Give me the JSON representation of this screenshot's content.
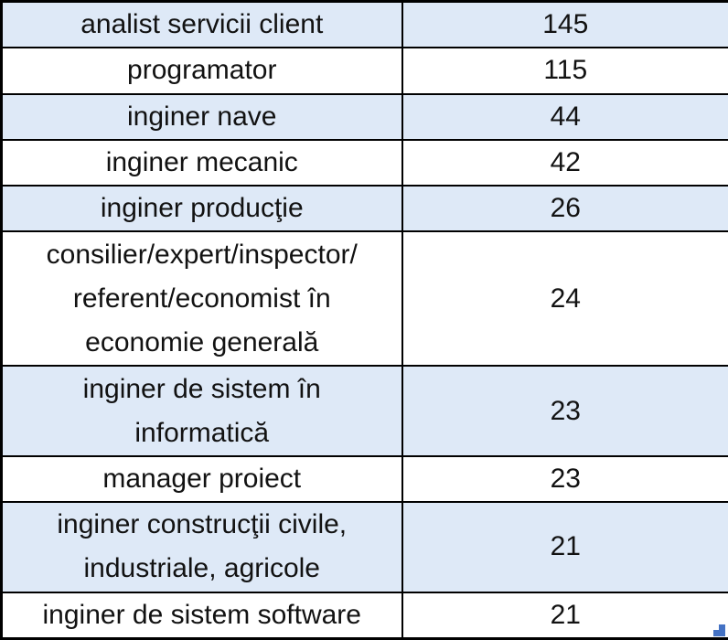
{
  "table": {
    "rows": [
      {
        "label": "analist servicii client",
        "value": "145"
      },
      {
        "label": "programator",
        "value": "115"
      },
      {
        "label": "inginer nave",
        "value": "44"
      },
      {
        "label": "inginer mecanic",
        "value": "42"
      },
      {
        "label": "inginer producţie",
        "value": "26"
      },
      {
        "label": "consilier/expert/inspector/\nreferent/economist în\neconomie generală",
        "value": "24"
      },
      {
        "label": "inginer de sistem în\ninformatică",
        "value": "23"
      },
      {
        "label": "manager proiect",
        "value": "23"
      },
      {
        "label": "inginer construcţii civile,\nindustriale, agricole",
        "value": "21"
      },
      {
        "label": "inginer de sistem software",
        "value": "21"
      }
    ]
  },
  "colors": {
    "shaded_row": "#dee9f7",
    "row_alt": "#ffffff",
    "border": "#000000",
    "text": "#121212",
    "fill_handle": "#4472c4"
  }
}
